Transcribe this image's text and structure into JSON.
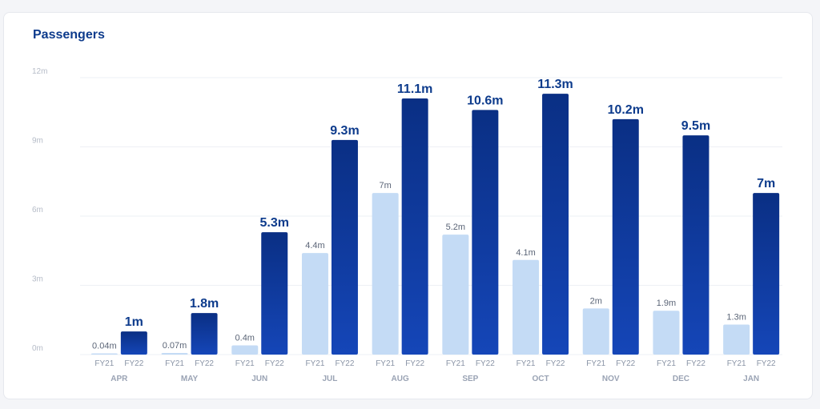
{
  "title": "Passengers",
  "colors": {
    "fy21": "#c4dbf5",
    "fy22_top": "#0a2f84",
    "fy22_bottom": "#1546b8"
  },
  "chart_data": {
    "type": "bar",
    "title": "Passengers",
    "categories": [
      "APR",
      "MAY",
      "JUN",
      "JUL",
      "AUG",
      "SEP",
      "OCT",
      "NOV",
      "DEC",
      "JAN"
    ],
    "series": [
      {
        "name": "FY21",
        "values": [
          0.04,
          0.07,
          0.4,
          4.4,
          7,
          5.2,
          4.1,
          2,
          1.9,
          1.3
        ],
        "labels": [
          "0.04m",
          "0.07m",
          "0.4m",
          "4.4m",
          "7m",
          "5.2m",
          "4.1m",
          "2m",
          "1.9m",
          "1.3m"
        ]
      },
      {
        "name": "FY22",
        "values": [
          1,
          1.8,
          5.3,
          9.3,
          11.1,
          10.6,
          11.3,
          10.2,
          9.5,
          7
        ],
        "labels": [
          "1m",
          "1.8m",
          "5.3m",
          "9.3m",
          "11.1m",
          "10.6m",
          "11.3m",
          "10.2m",
          "9.5m",
          "7m"
        ]
      }
    ],
    "yticks": [
      "0m",
      "3m",
      "6m",
      "9m",
      "12m"
    ],
    "ylim": [
      0,
      12
    ],
    "grid": true,
    "legend": "none"
  }
}
